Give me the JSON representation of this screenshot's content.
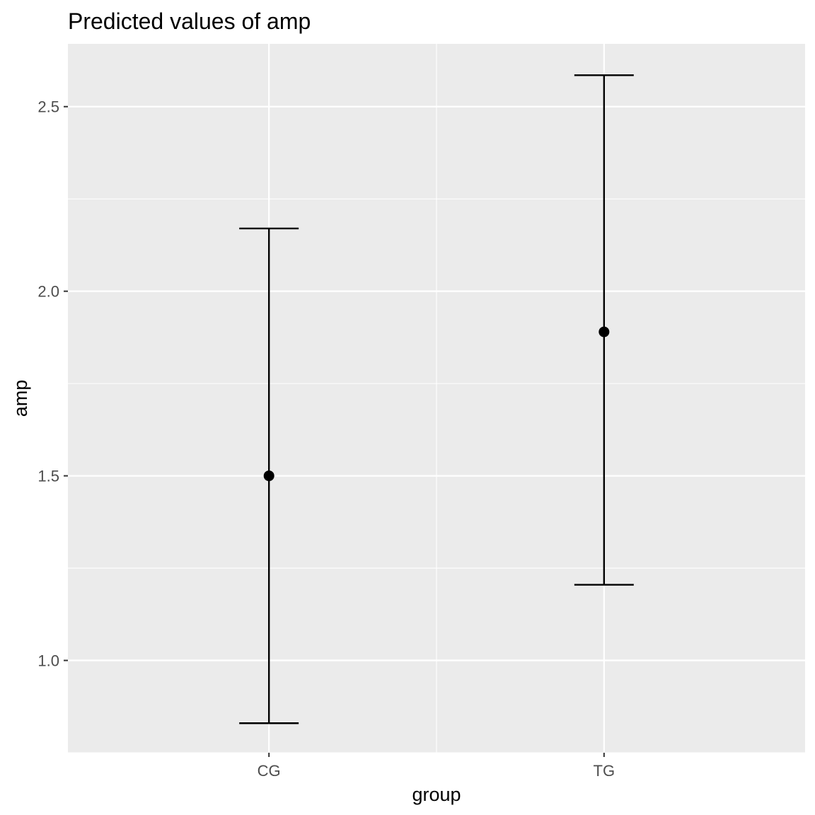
{
  "chart_data": {
    "type": "errorbar",
    "title": "Predicted values of amp",
    "xlabel": "group",
    "ylabel": "amp",
    "categories": [
      "CG",
      "TG"
    ],
    "points": [
      {
        "category": "CG",
        "predicted": 1.5,
        "conf_low": 0.83,
        "conf_high": 2.17
      },
      {
        "category": "TG",
        "predicted": 1.89,
        "conf_low": 1.205,
        "conf_high": 2.585
      }
    ],
    "ylim": [
      0.75,
      2.67
    ],
    "yticks": [
      1.0,
      1.5,
      2.0,
      2.5
    ],
    "ytick_labels": [
      "1.0",
      "1.5",
      "2.0",
      "2.5"
    ],
    "grid": true,
    "colors": {
      "panel_background": "#EBEBEB",
      "grid": "#FFFFFF",
      "mark": "#000000",
      "tick_label": "#4D4D4D",
      "tick": "#333333"
    }
  }
}
